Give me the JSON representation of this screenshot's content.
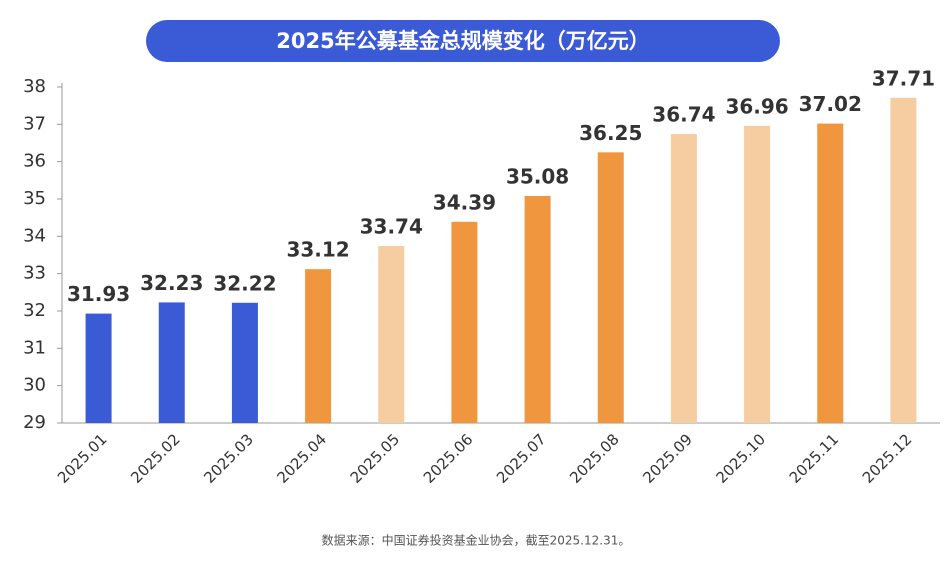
{
  "chart_data": {
    "type": "bar",
    "title": "2025年公募基金总规模变化（万亿元）",
    "categories": [
      "2025.01",
      "2025.02",
      "2025.03",
      "2025.04",
      "2025.05",
      "2025.06",
      "2025.07",
      "2025.08",
      "2025.09",
      "2025.10",
      "2025.11",
      "2025.12"
    ],
    "values": [
      31.93,
      32.23,
      32.22,
      33.12,
      33.74,
      34.39,
      35.08,
      36.25,
      36.74,
      36.96,
      37.02,
      37.71
    ],
    "colors": [
      "#3b5bd6",
      "#3b5bd6",
      "#3b5bd6",
      "#f0963f",
      "#f5cda0",
      "#f0963f",
      "#f0963f",
      "#f0963f",
      "#f5cda0",
      "#f5cda0",
      "#f0963f",
      "#f5cda0"
    ],
    "ylim": [
      29,
      38
    ],
    "yticks": [
      29,
      30,
      31,
      32,
      33,
      34,
      35,
      36,
      37,
      38
    ],
    "source": "数据来源：中国证券投资基金业协会，截至2025.12.31。"
  }
}
